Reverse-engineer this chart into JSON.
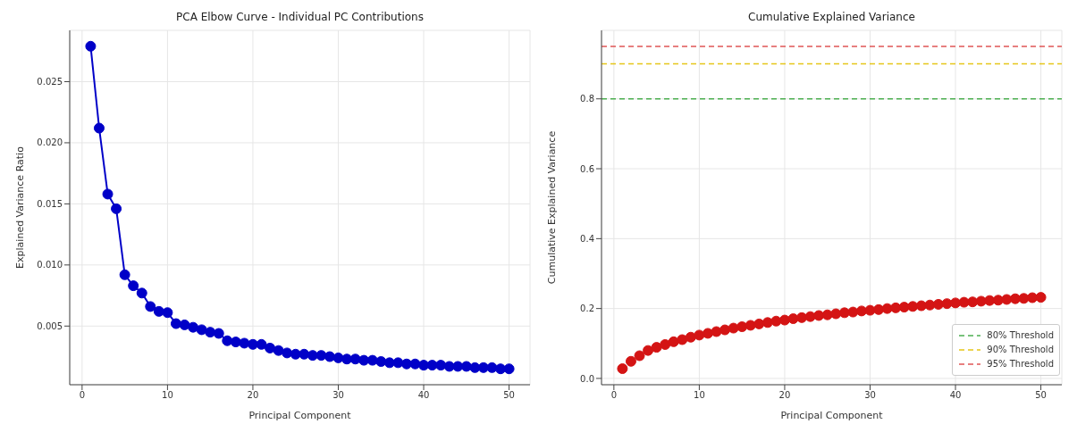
{
  "chart_data": [
    {
      "type": "line",
      "title": "PCA Elbow Curve - Individual PC Contributions",
      "xlabel": "Principal Component",
      "ylabel": "Explained Variance Ratio",
      "x": [
        1,
        2,
        3,
        4,
        5,
        6,
        7,
        8,
        9,
        10,
        11,
        12,
        13,
        14,
        15,
        16,
        17,
        18,
        19,
        20,
        21,
        22,
        23,
        24,
        25,
        26,
        27,
        28,
        29,
        30,
        31,
        32,
        33,
        34,
        35,
        36,
        37,
        38,
        39,
        40,
        41,
        42,
        43,
        44,
        45,
        46,
        47,
        48,
        49,
        50
      ],
      "series": [
        {
          "color": "#0000c8",
          "values": [
            0.0279,
            0.0212,
            0.0158,
            0.0146,
            0.0092,
            0.0083,
            0.0077,
            0.0066,
            0.0062,
            0.0061,
            0.0052,
            0.0051,
            0.0049,
            0.0047,
            0.0045,
            0.0044,
            0.0038,
            0.0037,
            0.0036,
            0.0035,
            0.0035,
            0.0032,
            0.003,
            0.0028,
            0.0027,
            0.0027,
            0.0026,
            0.0026,
            0.0025,
            0.0024,
            0.0023,
            0.0023,
            0.0022,
            0.0022,
            0.0021,
            0.002,
            0.002,
            0.0019,
            0.0019,
            0.0018,
            0.0018,
            0.0018,
            0.0017,
            0.0017,
            0.0017,
            0.0016,
            0.0016,
            0.0016,
            0.0015,
            0.0015
          ]
        }
      ],
      "xlim": [
        -1.45,
        52.45
      ],
      "xticks": [
        0,
        10,
        20,
        30,
        40,
        50
      ],
      "ylim": [
        0.0002,
        0.0292
      ],
      "yticks": [
        {
          "value": 0.005,
          "label": "0.005"
        },
        {
          "value": 0.01,
          "label": "0.010"
        },
        {
          "value": 0.015,
          "label": "0.015"
        },
        {
          "value": 0.02,
          "label": "0.020"
        },
        {
          "value": 0.025,
          "label": "0.025"
        }
      ],
      "grid": true,
      "marker": "circle",
      "line_style": "solid"
    },
    {
      "type": "scatter",
      "title": "Cumulative Explained Variance",
      "xlabel": "Principal Component",
      "ylabel": "Cumulative Explained Variance",
      "x": [
        1,
        2,
        3,
        4,
        5,
        6,
        7,
        8,
        9,
        10,
        11,
        12,
        13,
        14,
        15,
        16,
        17,
        18,
        19,
        20,
        21,
        22,
        23,
        24,
        25,
        26,
        27,
        28,
        29,
        30,
        31,
        32,
        33,
        34,
        35,
        36,
        37,
        38,
        39,
        40,
        41,
        42,
        43,
        44,
        45,
        46,
        47,
        48,
        49,
        50
      ],
      "series": [
        {
          "color": "#d41414",
          "values": [
            0.028,
            0.049,
            0.065,
            0.08,
            0.089,
            0.097,
            0.105,
            0.111,
            0.118,
            0.124,
            0.129,
            0.134,
            0.139,
            0.144,
            0.148,
            0.152,
            0.156,
            0.16,
            0.164,
            0.167,
            0.171,
            0.174,
            0.177,
            0.18,
            0.182,
            0.185,
            0.188,
            0.19,
            0.193,
            0.195,
            0.197,
            0.2,
            0.202,
            0.204,
            0.206,
            0.208,
            0.21,
            0.212,
            0.214,
            0.216,
            0.218,
            0.219,
            0.221,
            0.223,
            0.224,
            0.226,
            0.228,
            0.229,
            0.231,
            0.232
          ]
        }
      ],
      "xlim": [
        -1.45,
        52.45
      ],
      "xticks": [
        0,
        10,
        20,
        30,
        40,
        50
      ],
      "ylim": [
        -0.018,
        0.996
      ],
      "yticks": [
        {
          "value": 0,
          "label": "0.0"
        },
        0.2,
        0.4,
        0.6,
        0.8
      ],
      "ref_lines": [
        {
          "axis": "y",
          "value": 0.8,
          "label": "80% Threshold",
          "color": "#4caf50",
          "line_style": "dashed"
        },
        {
          "axis": "y",
          "value": 0.9,
          "label": "90% Threshold",
          "color": "#e6c619",
          "line_style": "dashed"
        },
        {
          "axis": "y",
          "value": 0.95,
          "label": "95% Threshold",
          "color": "#e05555",
          "line_style": "dashed"
        }
      ],
      "grid": true,
      "legend": "bottom right",
      "marker": "circle"
    }
  ]
}
